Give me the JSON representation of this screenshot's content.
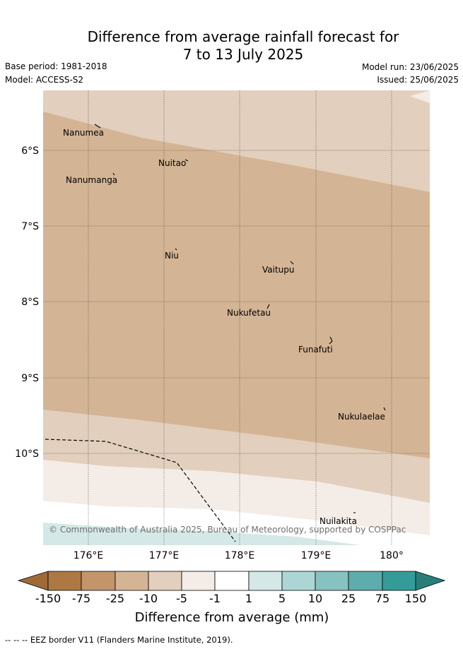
{
  "title": {
    "line1": "Difference from average rainfall forecast for",
    "line2": "7 to 13 July 2025"
  },
  "meta": {
    "base_period": "Base period: 1981-2018",
    "model": "Model: ACCESS-S2",
    "model_run": "Model run: 23/06/2025",
    "issued": "Issued: 25/06/2025"
  },
  "map": {
    "latitude_labels": [
      "6°S",
      "7°S",
      "8°S",
      "9°S",
      "10°S"
    ],
    "longitude_labels": [
      "176°E",
      "177°E",
      "178°E",
      "179°E",
      "180°"
    ],
    "places": [
      "Nanumea",
      "Nuitao",
      "Nanumanga",
      "Niu",
      "Vaitupu",
      "Nukufetau",
      "Funafuti",
      "Nukulaelae",
      "Nuilakita"
    ],
    "copyright": "© Commonwealth of Australia 2025, Bureau of Meteorology, supported by COSPPac",
    "colors": {
      "minus_150_75": "#ad7842",
      "minus_75_25": "#c2956a",
      "minus_25_10": "#d3b494",
      "minus_10_5": "#e2cfbd",
      "minus_5_1": "#f4ece6",
      "minus_1_1": "#ffffff",
      "plus_1_5": "#d4e9e7",
      "plus_5_10": "#acd6d4",
      "plus_10_25": "#86c2bf",
      "plus_25_75": "#5cadab",
      "plus_75_150": "#349c98",
      "over_150": "#2a7e7a",
      "under_150": "#9f6a36"
    }
  },
  "colorbar": {
    "labels": [
      "-150",
      "-75",
      "-25",
      "-10",
      "-5",
      "-1",
      "1",
      "5",
      "10",
      "25",
      "75",
      "150"
    ],
    "title": "Difference from average (mm)"
  },
  "footer": "--  --  -- EEZ border V11 (Flanders Marine Institute, 2019)."
}
